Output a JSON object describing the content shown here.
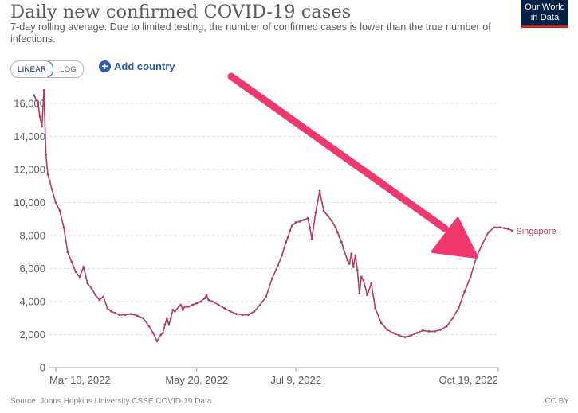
{
  "header": {
    "title": "Daily new confirmed COVID-19 cases",
    "subtitle": "7-day rolling average. Due to limited testing, the number of confirmed cases is lower than the true number of infections."
  },
  "logo": {
    "line1": "Our World",
    "line2": "in Data"
  },
  "controls": {
    "scale_linear": "LINEAR",
    "scale_log": "LOG",
    "add_country": "Add country"
  },
  "footer": {
    "source": "Source: Johns Hopkins University CSSE COVID-19 Data",
    "license": "CC BY"
  },
  "colors": {
    "series": "#b13c5b",
    "arrow": "#f1386d",
    "grid": "#dddddd"
  },
  "chart_data": {
    "type": "line",
    "title": "Daily new confirmed COVID-19 cases",
    "ylim": [
      0,
      17000
    ],
    "y_ticks": [
      0,
      2000,
      4000,
      6000,
      8000,
      10000,
      12000,
      14000,
      16000
    ],
    "y_tick_labels": [
      "0",
      "2,000",
      "4,000",
      "6,000",
      "8,000",
      "10,000",
      "12,000",
      "14,000",
      "16,000"
    ],
    "x_range": [
      "2022-02-25",
      "2022-10-27"
    ],
    "x_tick_labels": [
      {
        "date": "2022-03-10",
        "label": "Mar 10, 2022"
      },
      {
        "date": "2022-05-20",
        "label": "May 20, 2022"
      },
      {
        "date": "2022-07-09",
        "label": "Jul 9, 2022"
      },
      {
        "date": "2022-10-19",
        "label": "Oct 19, 2022"
      }
    ],
    "grid": "horizontal",
    "series": [
      {
        "name": "Singapore",
        "x": [
          "2022-02-27",
          "2022-03-01",
          "2022-03-02",
          "2022-03-03",
          "2022-03-04",
          "2022-03-05",
          "2022-03-06",
          "2022-03-07",
          "2022-03-08",
          "2022-03-10",
          "2022-03-12",
          "2022-03-14",
          "2022-03-16",
          "2022-03-18",
          "2022-03-20",
          "2022-03-22",
          "2022-03-24",
          "2022-03-26",
          "2022-03-28",
          "2022-03-30",
          "2022-04-01",
          "2022-04-03",
          "2022-04-05",
          "2022-04-07",
          "2022-04-09",
          "2022-04-11",
          "2022-04-14",
          "2022-04-17",
          "2022-04-20",
          "2022-04-23",
          "2022-04-26",
          "2022-04-28",
          "2022-04-30",
          "2022-05-02",
          "2022-05-03",
          "2022-05-04",
          "2022-05-05",
          "2022-05-06",
          "2022-05-07",
          "2022-05-08",
          "2022-05-09",
          "2022-05-11",
          "2022-05-12",
          "2022-05-13",
          "2022-05-14",
          "2022-05-15",
          "2022-05-16",
          "2022-05-18",
          "2022-05-20",
          "2022-05-22",
          "2022-05-24",
          "2022-05-25",
          "2022-05-26",
          "2022-05-28",
          "2022-05-31",
          "2022-06-03",
          "2022-06-06",
          "2022-06-09",
          "2022-06-12",
          "2022-06-15",
          "2022-06-18",
          "2022-06-21",
          "2022-06-24",
          "2022-06-27",
          "2022-06-30",
          "2022-07-02",
          "2022-07-04",
          "2022-07-05",
          "2022-07-06",
          "2022-07-07",
          "2022-07-09",
          "2022-07-11",
          "2022-07-13",
          "2022-07-15",
          "2022-07-16",
          "2022-07-17",
          "2022-07-19",
          "2022-07-21",
          "2022-07-23",
          "2022-07-25",
          "2022-07-27",
          "2022-07-29",
          "2022-07-30",
          "2022-07-31",
          "2022-08-01",
          "2022-08-02",
          "2022-08-04",
          "2022-08-05",
          "2022-08-06",
          "2022-08-07",
          "2022-08-08",
          "2022-08-09",
          "2022-08-10",
          "2022-08-11",
          "2022-08-12",
          "2022-08-14",
          "2022-08-16",
          "2022-08-18",
          "2022-08-21",
          "2022-08-24",
          "2022-08-27",
          "2022-08-30",
          "2022-09-02",
          "2022-09-05",
          "2022-09-08",
          "2022-09-11",
          "2022-09-14",
          "2022-09-17",
          "2022-09-20",
          "2022-09-23",
          "2022-09-26",
          "2022-09-29",
          "2022-10-02",
          "2022-10-05",
          "2022-10-08",
          "2022-10-11",
          "2022-10-14",
          "2022-10-17",
          "2022-10-20",
          "2022-10-22",
          "2022-10-24",
          "2022-10-26"
        ],
        "values": [
          16500,
          16000,
          15200,
          14600,
          16800,
          12900,
          11700,
          11300,
          10800,
          10000,
          9500,
          8500,
          7000,
          6400,
          5800,
          5500,
          6100,
          5100,
          4800,
          4400,
          4100,
          4300,
          3600,
          3400,
          3300,
          3200,
          3200,
          3250,
          3150,
          3000,
          2500,
          2100,
          1600,
          2000,
          2100,
          2600,
          3000,
          2600,
          3000,
          3500,
          3400,
          3700,
          3800,
          3500,
          3700,
          3700,
          3700,
          3800,
          3900,
          4000,
          4200,
          4400,
          4100,
          4000,
          3800,
          3600,
          3400,
          3250,
          3200,
          3200,
          3400,
          3800,
          4300,
          5400,
          6200,
          6800,
          7600,
          7900,
          8300,
          8600,
          8800,
          8850,
          8950,
          9050,
          8500,
          7800,
          9400,
          10700,
          9500,
          9200,
          8900,
          8500,
          8200,
          7900,
          7600,
          7200,
          6500,
          6300,
          6900,
          6100,
          6800,
          5900,
          4500,
          5500,
          5300,
          4400,
          5100,
          3600,
          2700,
          2300,
          2100,
          1950,
          1850,
          1950,
          2100,
          2250,
          2200,
          2200,
          2300,
          2500,
          3000,
          3600,
          4600,
          5500,
          6700,
          7500,
          8200,
          8500,
          8500,
          8450,
          8400,
          8300
        ],
        "label": "Singapore"
      }
    ]
  }
}
